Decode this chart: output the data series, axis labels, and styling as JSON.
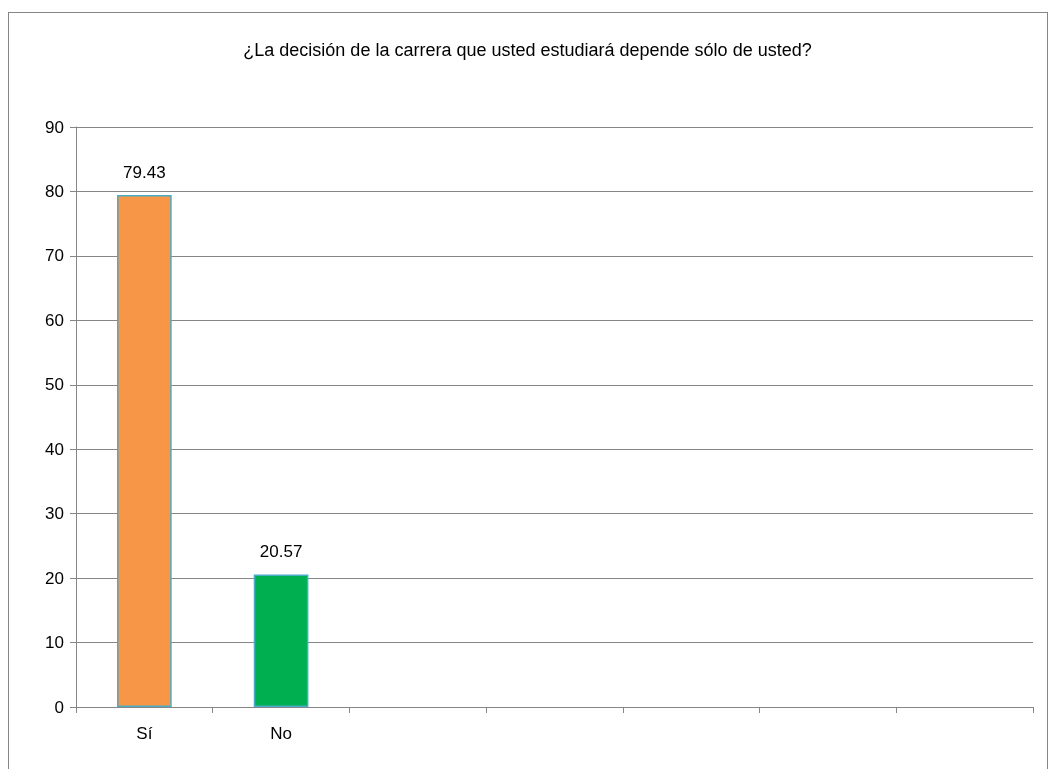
{
  "chart_data": {
    "type": "bar",
    "title": "¿La decisión de la carrera que usted estudiará depende sólo de usted?",
    "categories": [
      "Sí",
      "No",
      null,
      null,
      null,
      null,
      null
    ],
    "values": [
      79.43,
      20.57,
      null,
      null,
      null,
      null,
      null
    ],
    "colors": [
      "#f79646",
      "#00b050",
      null,
      null,
      null,
      null,
      null
    ],
    "ylim": [
      0,
      90
    ],
    "yticks": [
      0,
      10,
      20,
      30,
      40,
      50,
      60,
      70,
      80,
      90
    ],
    "grid": "y",
    "data_labels": true
  }
}
